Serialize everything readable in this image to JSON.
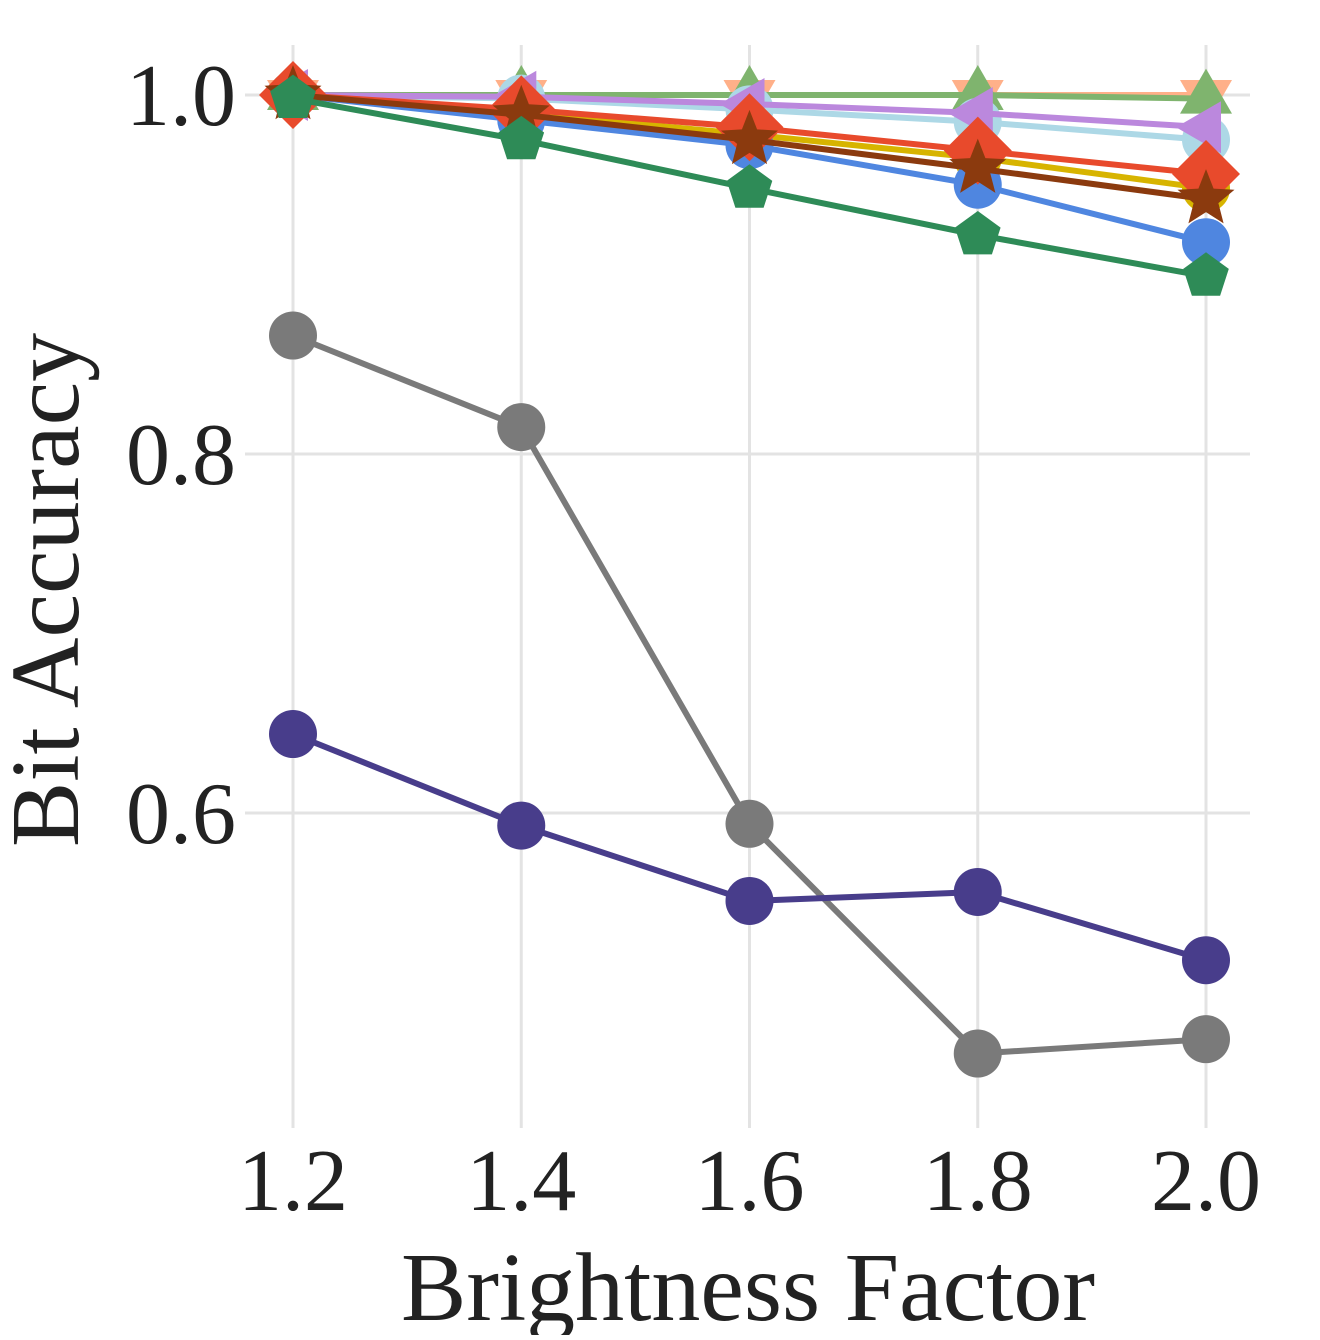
{
  "chart_data": {
    "type": "line",
    "title": "",
    "xlabel": "Brightness Factor",
    "ylabel": "Bit Accuracy",
    "x": [
      1.2,
      1.4,
      1.6,
      1.8,
      2.0
    ],
    "x_tick_labels": [
      "1.2",
      "1.4",
      "1.6",
      "1.8",
      "2.0"
    ],
    "y_ticks": [
      0.6,
      0.8,
      1.0
    ],
    "y_tick_labels": [
      "0.6",
      "0.8",
      "1.0"
    ],
    "xlim": [
      1.2,
      2.0
    ],
    "ylim": [
      0.43,
      1.03
    ],
    "grid": true,
    "legend": "none",
    "series": [
      {
        "color": "#FFB089",
        "marker": "triangle-down",
        "values": [
          1.0,
          1.0,
          1.0,
          1.0,
          1.0
        ]
      },
      {
        "color": "#7FB46E",
        "marker": "triangle-up",
        "values": [
          1.0,
          1.0,
          1.0,
          1.0,
          0.998
        ]
      },
      {
        "color": "#ADD8E6",
        "marker": "circle",
        "values": [
          1.0,
          0.998,
          0.992,
          0.985,
          0.975
        ]
      },
      {
        "color": "#BB88DD",
        "marker": "triangle-left",
        "values": [
          1.0,
          0.999,
          0.995,
          0.99,
          0.982
        ]
      },
      {
        "color": "#D7B400",
        "marker": "circle",
        "values": [
          1.0,
          0.99,
          0.978,
          0.965,
          0.948
        ]
      },
      {
        "color": "#4F86E0",
        "marker": "circle",
        "values": [
          1.0,
          0.986,
          0.972,
          0.95,
          0.918
        ]
      },
      {
        "color": "#E84A2C",
        "marker": "diamond",
        "values": [
          1.0,
          0.992,
          0.982,
          0.969,
          0.956
        ]
      },
      {
        "color": "#8B3A0E",
        "marker": "star",
        "values": [
          1.0,
          0.989,
          0.975,
          0.959,
          0.942
        ]
      },
      {
        "color": "#2E8B57",
        "marker": "pentagon",
        "values": [
          0.998,
          0.975,
          0.948,
          0.922,
          0.899
        ]
      },
      {
        "color": "#7A7A7A",
        "marker": "circle",
        "values": [
          0.866,
          0.815,
          0.594,
          0.466,
          0.474
        ]
      },
      {
        "color": "#483D8B",
        "marker": "circle",
        "values": [
          0.644,
          0.593,
          0.551,
          0.556,
          0.518
        ]
      }
    ]
  }
}
